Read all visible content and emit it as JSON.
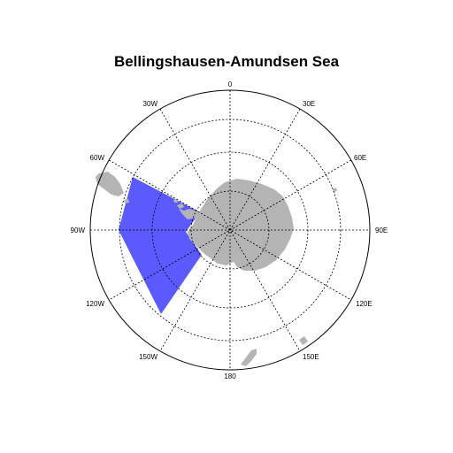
{
  "title": "Bellingshausen-Amundsen Sea",
  "projection": "south-polar-stereographic",
  "colors": {
    "land": "#b4b4b4",
    "region": "#5a5aff",
    "grid": "#000000",
    "background": "#ffffff"
  },
  "lon_labels": {
    "l0": "0",
    "l30e": "30E",
    "l60e": "60E",
    "l90e": "90E",
    "l120e": "120E",
    "l150e": "150E",
    "l180": "180",
    "l150w": "150W",
    "l120w": "120W",
    "l90w": "90W",
    "l60w": "60W",
    "l30w": "30W"
  },
  "highlighted_region": {
    "name": "Bellingshausen-Amundsen Sea",
    "lon_range": [
      "140W",
      "62W"
    ]
  }
}
